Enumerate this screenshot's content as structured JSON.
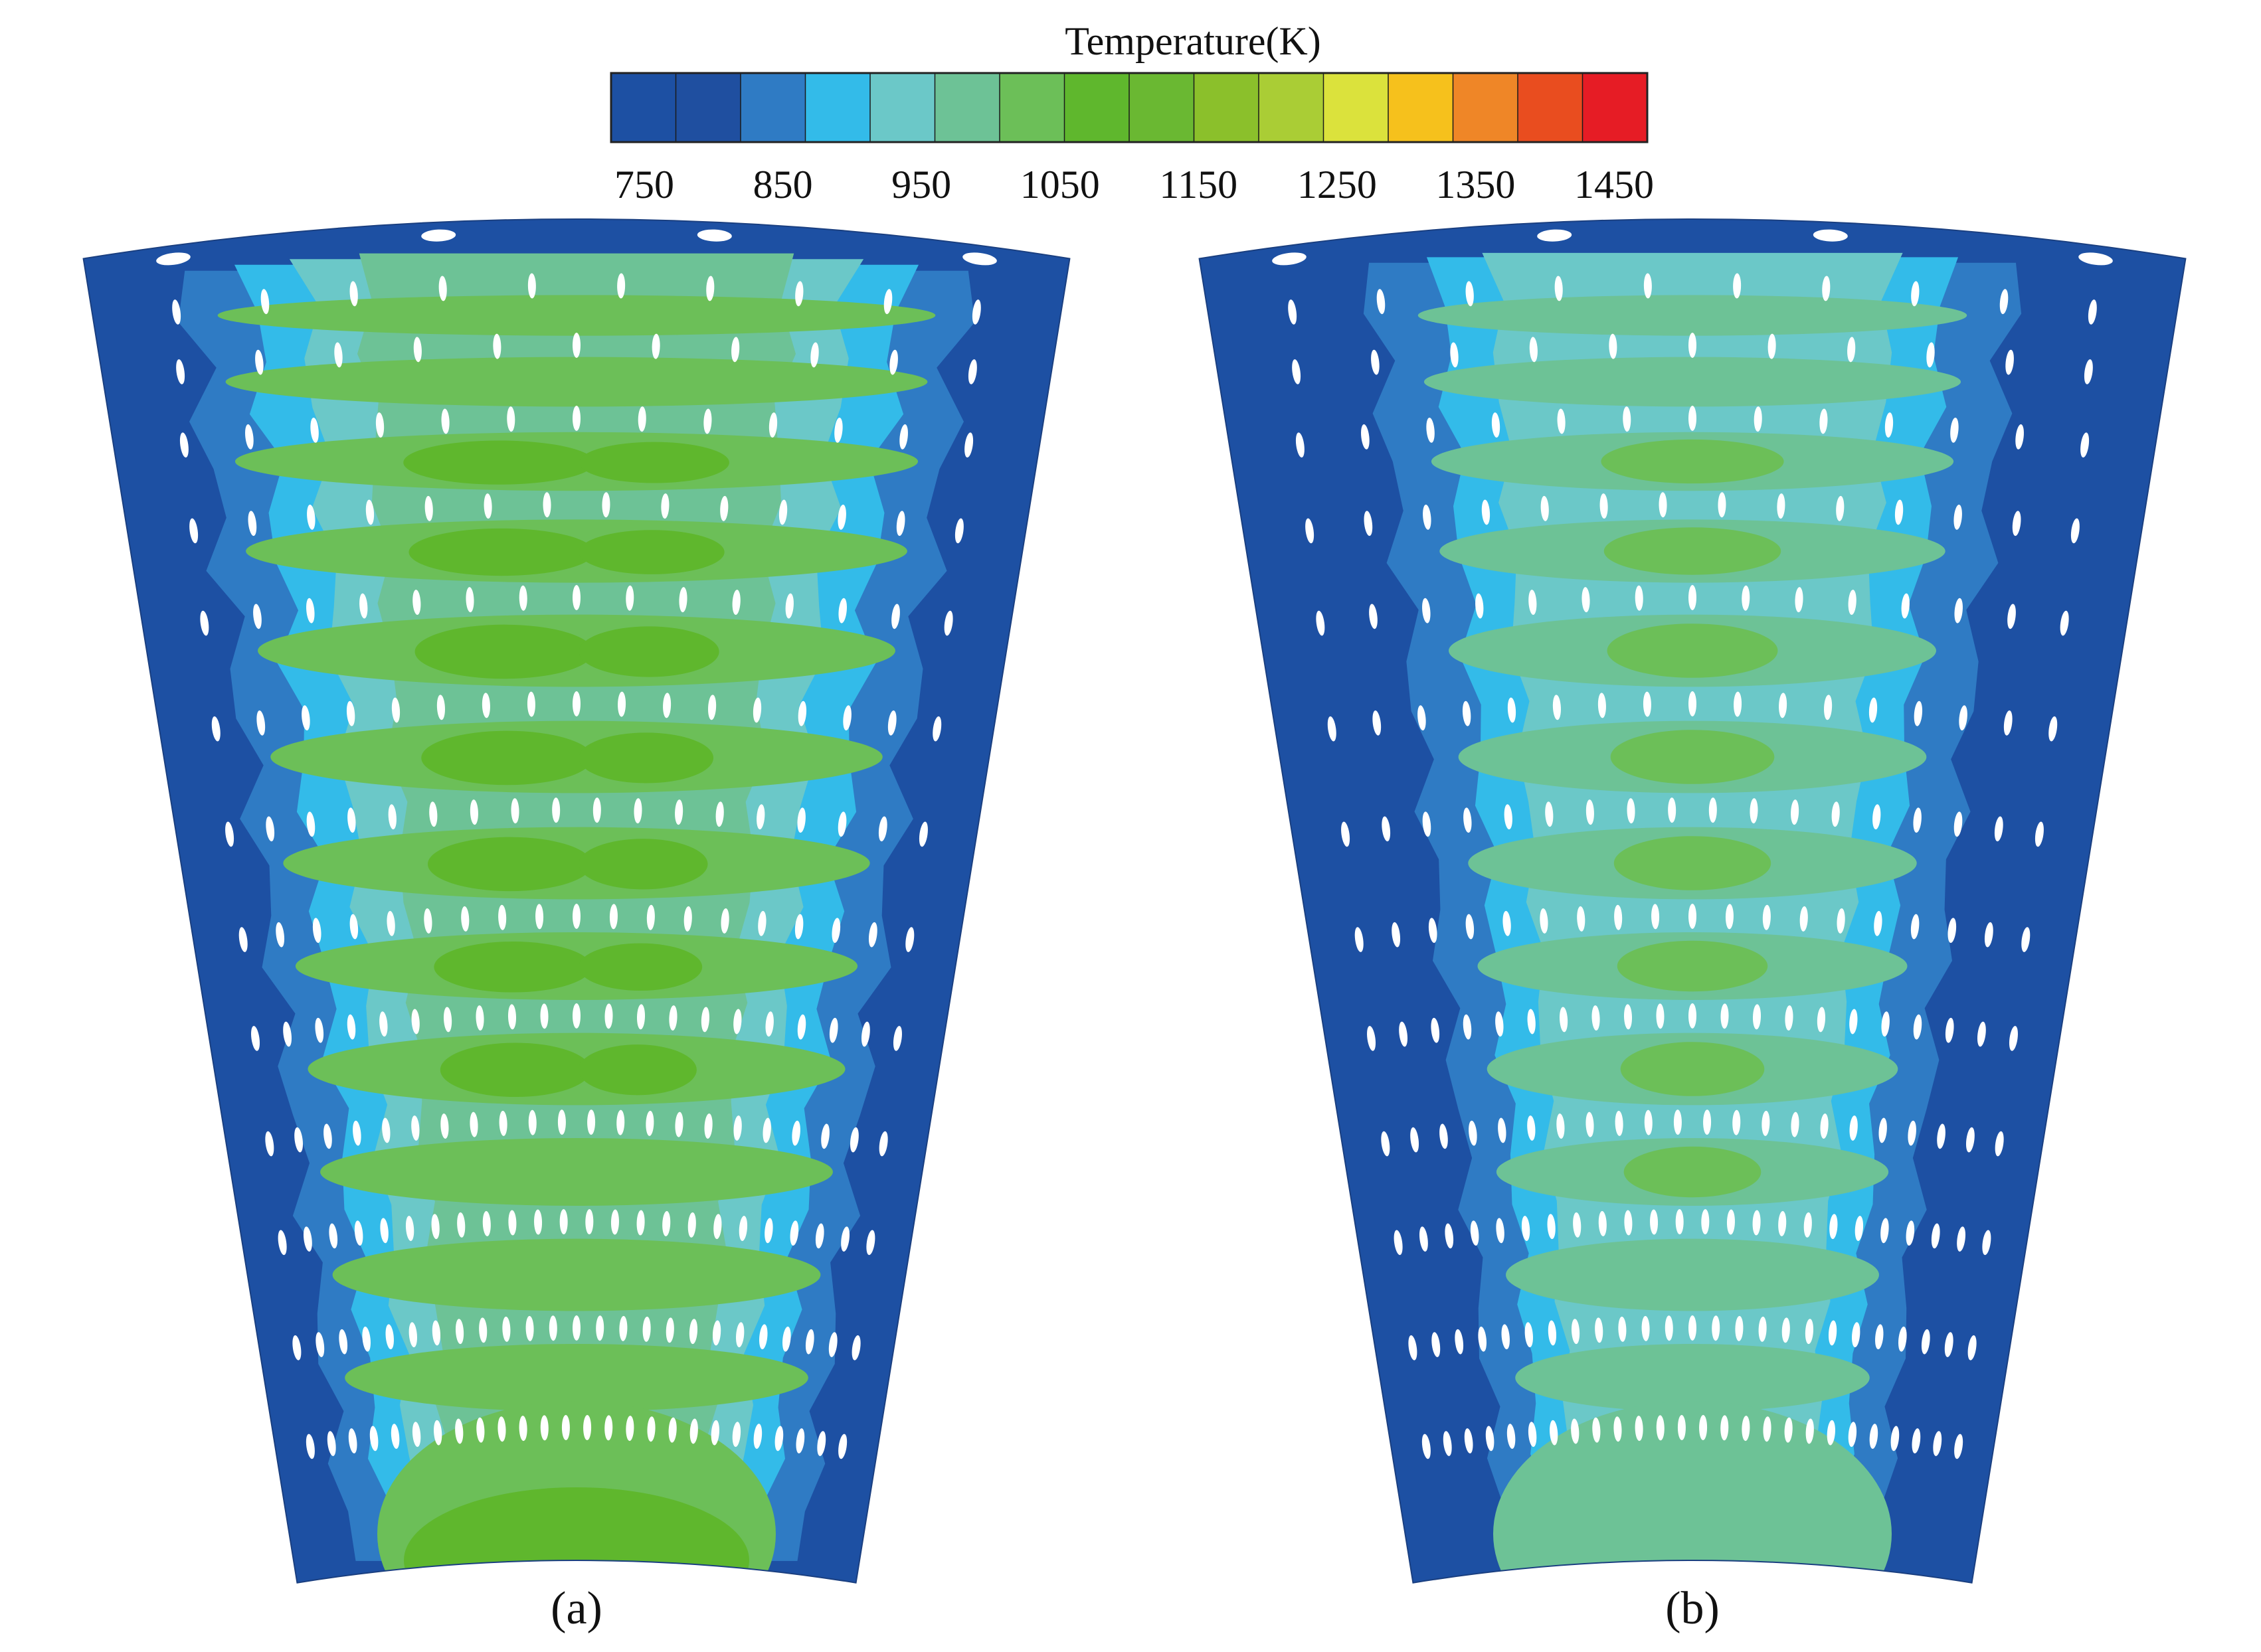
{
  "colorbar": {
    "title": "Temperature(K)",
    "colors": [
      "#1d50a3",
      "#1f4fa0",
      "#2f7bc4",
      "#33bbe9",
      "#6bc8c8",
      "#6dc296",
      "#6cbf58",
      "#5fb72d",
      "#6ab832",
      "#8bc02b",
      "#aacd35",
      "#dbe23c",
      "#f6c11c",
      "#ef8627",
      "#e94d1f",
      "#e61c25"
    ],
    "tick_labels": [
      "750",
      "850",
      "950",
      "1050",
      "1150",
      "1250",
      "1350",
      "1450"
    ]
  },
  "panels": [
    {
      "id": "a",
      "caption": "(a)"
    },
    {
      "id": "b",
      "caption": "(b)"
    }
  ],
  "colors": {
    "c800": "#1d50a3",
    "c825": "#2f7bc4",
    "c875": "#33bbe9",
    "c925": "#6bc8c8",
    "c975": "#6dc296",
    "c1025": "#6cbf58",
    "c1075": "#5fb72d",
    "hole": "#ffffff"
  }
}
